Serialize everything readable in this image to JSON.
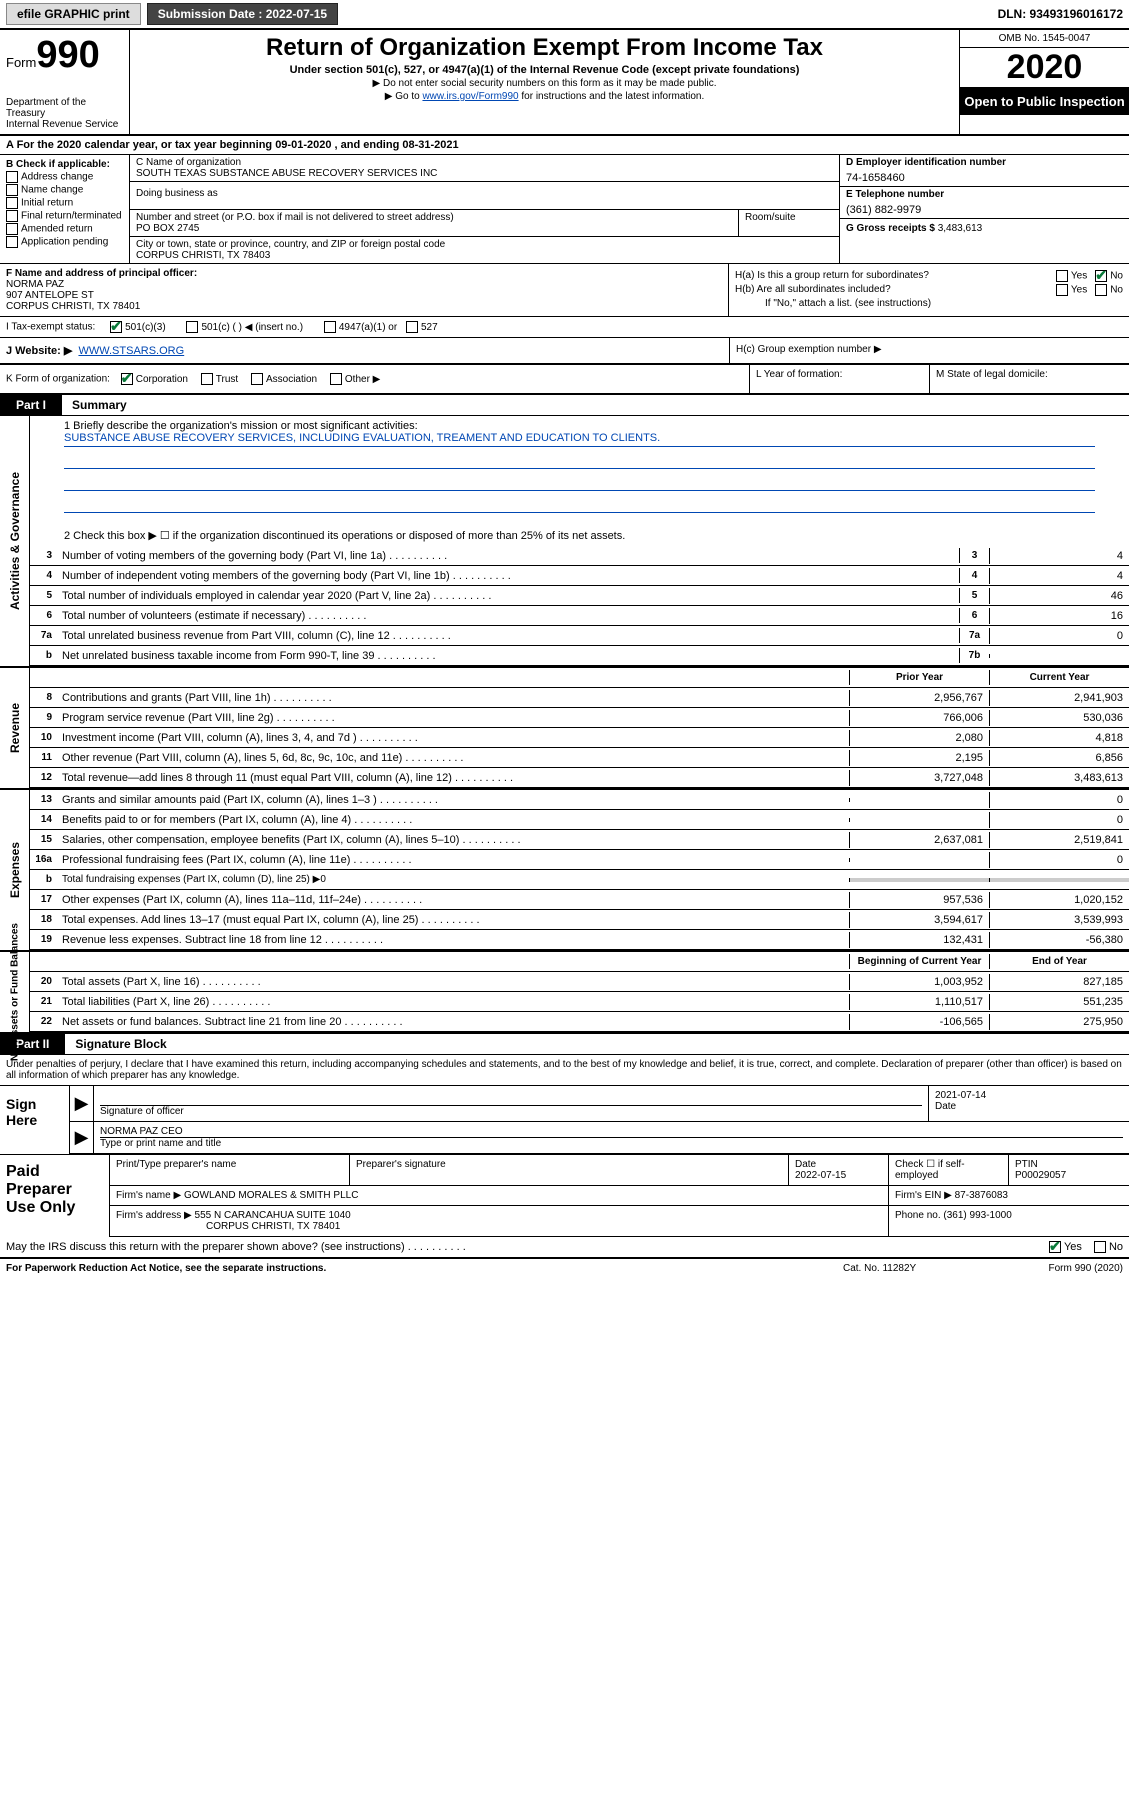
{
  "topbar": {
    "efile": "efile GRAPHIC print",
    "submission_label": "Submission Date : 2022-07-15",
    "dln": "DLN: 93493196016172"
  },
  "header": {
    "form_prefix": "Form",
    "form_number": "990",
    "dept": "Department of the Treasury\nInternal Revenue Service",
    "title": "Return of Organization Exempt From Income Tax",
    "subtitle": "Under section 501(c), 527, or 4947(a)(1) of the Internal Revenue Code (except private foundations)",
    "note1": "▶ Do not enter social security numbers on this form as it may be made public.",
    "note2_pre": "▶ Go to ",
    "note2_link": "www.irs.gov/Form990",
    "note2_post": " for instructions and the latest information.",
    "omb": "OMB No. 1545-0047",
    "year": "2020",
    "openpub": "Open to Public Inspection"
  },
  "line_a": "A For the 2020 calendar year, or tax year beginning 09-01-2020   , and ending 08-31-2021",
  "section_b": {
    "label": "B Check if applicable:",
    "opts": [
      "Address change",
      "Name change",
      "Initial return",
      "Final return/terminated",
      "Amended return",
      "Application pending"
    ]
  },
  "section_c": {
    "name_label": "C Name of organization",
    "name": "SOUTH TEXAS SUBSTANCE ABUSE RECOVERY SERVICES INC",
    "dba_label": "Doing business as",
    "street_label": "Number and street (or P.O. box if mail is not delivered to street address)",
    "street": "PO BOX 2745",
    "suite_label": "Room/suite",
    "city_label": "City or town, state or province, country, and ZIP or foreign postal code",
    "city": "CORPUS CHRISTI, TX  78403"
  },
  "section_d": {
    "ein_label": "D Employer identification number",
    "ein": "74-1658460",
    "tel_label": "E Telephone number",
    "tel": "(361) 882-9979",
    "gross_label": "G Gross receipts $",
    "gross": "3,483,613"
  },
  "section_f": {
    "label": "F Name and address of principal officer:",
    "name": "NORMA PAZ",
    "street": "907 ANTELOPE ST",
    "city": "CORPUS CHRISTI, TX  78401"
  },
  "section_h": {
    "ha_label": "H(a)  Is this a group return for subordinates?",
    "hb_label": "H(b)  Are all subordinates included?",
    "hb_note": "If \"No,\" attach a list. (see instructions)",
    "hc_label": "H(c)  Group exemption number ▶",
    "yes": "Yes",
    "no": "No"
  },
  "tax_status": {
    "label": "I  Tax-exempt status:",
    "opt1": "501(c)(3)",
    "opt2": "501(c) (   ) ◀ (insert no.)",
    "opt3": "4947(a)(1) or",
    "opt4": "527"
  },
  "website": {
    "label": "J  Website: ▶",
    "value": "WWW.STSARS.ORG"
  },
  "form_org": {
    "k_label": "K Form of organization:",
    "k_opts": [
      "Corporation",
      "Trust",
      "Association",
      "Other ▶"
    ],
    "l_label": "L Year of formation:",
    "m_label": "M State of legal domicile:"
  },
  "part1": {
    "tab": "Part I",
    "title": "Summary"
  },
  "mission": {
    "label": "1  Briefly describe the organization's mission or most significant activities:",
    "text": "SUBSTANCE ABUSE RECOVERY SERVICES, INCLUDING EVALUATION, TREAMENT AND EDUCATION TO CLIENTS."
  },
  "line2": "2   Check this box ▶ ☐  if the organization discontinued its operations or disposed of more than 25% of its net assets.",
  "governance_rows": [
    {
      "n": "3",
      "d": "Number of voting members of the governing body (Part VI, line 1a)",
      "box": "3",
      "v": "4"
    },
    {
      "n": "4",
      "d": "Number of independent voting members of the governing body (Part VI, line 1b)",
      "box": "4",
      "v": "4"
    },
    {
      "n": "5",
      "d": "Total number of individuals employed in calendar year 2020 (Part V, line 2a)",
      "box": "5",
      "v": "46"
    },
    {
      "n": "6",
      "d": "Total number of volunteers (estimate if necessary)",
      "box": "6",
      "v": "16"
    },
    {
      "n": "7a",
      "d": "Total unrelated business revenue from Part VIII, column (C), line 12",
      "box": "7a",
      "v": "0"
    },
    {
      "n": "b",
      "d": "Net unrelated business taxable income from Form 990-T, line 39",
      "box": "7b",
      "v": ""
    }
  ],
  "revenue_head": {
    "prior": "Prior Year",
    "current": "Current Year"
  },
  "revenue_rows": [
    {
      "n": "8",
      "d": "Contributions and grants (Part VIII, line 1h)",
      "p": "2,956,767",
      "c": "2,941,903"
    },
    {
      "n": "9",
      "d": "Program service revenue (Part VIII, line 2g)",
      "p": "766,006",
      "c": "530,036"
    },
    {
      "n": "10",
      "d": "Investment income (Part VIII, column (A), lines 3, 4, and 7d )",
      "p": "2,080",
      "c": "4,818"
    },
    {
      "n": "11",
      "d": "Other revenue (Part VIII, column (A), lines 5, 6d, 8c, 9c, 10c, and 11e)",
      "p": "2,195",
      "c": "6,856"
    },
    {
      "n": "12",
      "d": "Total revenue—add lines 8 through 11 (must equal Part VIII, column (A), line 12)",
      "p": "3,727,048",
      "c": "3,483,613"
    }
  ],
  "expense_rows": [
    {
      "n": "13",
      "d": "Grants and similar amounts paid (Part IX, column (A), lines 1–3 )",
      "p": "",
      "c": "0"
    },
    {
      "n": "14",
      "d": "Benefits paid to or for members (Part IX, column (A), line 4)",
      "p": "",
      "c": "0"
    },
    {
      "n": "15",
      "d": "Salaries, other compensation, employee benefits (Part IX, column (A), lines 5–10)",
      "p": "2,637,081",
      "c": "2,519,841"
    },
    {
      "n": "16a",
      "d": "Professional fundraising fees (Part IX, column (A), line 11e)",
      "p": "",
      "c": "0"
    },
    {
      "n": "b",
      "d": "Total fundraising expenses (Part IX, column (D), line 25) ▶0",
      "p": "—",
      "c": "—"
    },
    {
      "n": "17",
      "d": "Other expenses (Part IX, column (A), lines 11a–11d, 11f–24e)",
      "p": "957,536",
      "c": "1,020,152"
    },
    {
      "n": "18",
      "d": "Total expenses. Add lines 13–17 (must equal Part IX, column (A), line 25)",
      "p": "3,594,617",
      "c": "3,539,993"
    },
    {
      "n": "19",
      "d": "Revenue less expenses. Subtract line 18 from line 12",
      "p": "132,431",
      "c": "-56,380"
    }
  ],
  "netassets_head": {
    "prior": "Beginning of Current Year",
    "current": "End of Year"
  },
  "netassets_rows": [
    {
      "n": "20",
      "d": "Total assets (Part X, line 16)",
      "p": "1,003,952",
      "c": "827,185"
    },
    {
      "n": "21",
      "d": "Total liabilities (Part X, line 26)",
      "p": "1,110,517",
      "c": "551,235"
    },
    {
      "n": "22",
      "d": "Net assets or fund balances. Subtract line 21 from line 20",
      "p": "-106,565",
      "c": "275,950"
    }
  ],
  "side_labels": {
    "gov": "Activities & Governance",
    "rev": "Revenue",
    "exp": "Expenses",
    "net": "Net Assets or Fund Balances"
  },
  "part2": {
    "tab": "Part II",
    "title": "Signature Block"
  },
  "sig_text": "Under penalties of perjury, I declare that I have examined this return, including accompanying schedules and statements, and to the best of my knowledge and belief, it is true, correct, and complete. Declaration of preparer (other than officer) is based on all information of which preparer has any knowledge.",
  "sign_here": "Sign Here",
  "sig": {
    "officer_label": "Signature of officer",
    "date_label": "Date",
    "date": "2021-07-14",
    "name": "NORMA PAZ CEO",
    "name_label": "Type or print name and title"
  },
  "paid_prep": "Paid Preparer Use Only",
  "prep": {
    "name_label": "Print/Type preparer's name",
    "sig_label": "Preparer's signature",
    "date_label": "Date",
    "date": "2022-07-15",
    "check_label": "Check ☐ if self-employed",
    "ptin_label": "PTIN",
    "ptin": "P00029057",
    "firm_name_label": "Firm's name    ▶",
    "firm_name": "GOWLAND MORALES & SMITH PLLC",
    "firm_ein_label": "Firm's EIN ▶",
    "firm_ein": "87-3876083",
    "firm_addr_label": "Firm's address ▶",
    "firm_addr1": "555 N CARANCAHUA SUITE 1040",
    "firm_addr2": "CORPUS CHRISTI, TX  78401",
    "phone_label": "Phone no.",
    "phone": "(361) 993-1000"
  },
  "discuss": "May the IRS discuss this return with the preparer shown above? (see instructions)",
  "footer": {
    "left": "For Paperwork Reduction Act Notice, see the separate instructions.",
    "mid": "Cat. No. 11282Y",
    "right": "Form 990 (2020)"
  }
}
